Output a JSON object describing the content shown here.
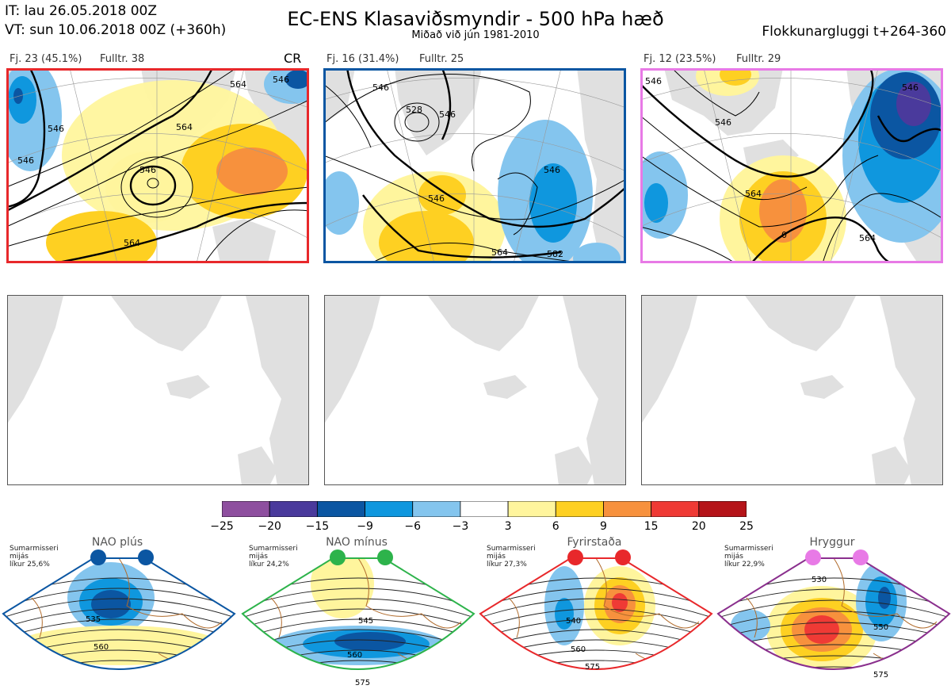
{
  "header": {
    "it": "IT: lau 26.05.2018 00Z",
    "vt": "VT: sun 10.06.2018 00Z  (+360h)",
    "title": "EC-ENS Klasaviðsmyndir - 500 hPa hæð",
    "subtitle": "Miðað við jún 1981-2010",
    "window": "Flokkunargluggi t+264-360"
  },
  "clusters": [
    {
      "label": "Fj. 23 (45.1%)",
      "rep": "Fulltr. 38",
      "tag": "CR",
      "border_color": "#e8282b"
    },
    {
      "label": "Fj. 16 (31.4%)",
      "rep": "Fulltr. 25",
      "tag": "",
      "border_color": "#0b56a2"
    },
    {
      "label": "Fj. 12 (23.5%)",
      "rep": "Fulltr. 29",
      "tag": "",
      "border_color": "#e87ae6"
    }
  ],
  "contour_labels": {
    "c1": [
      "564",
      "546",
      "546",
      "564",
      "546",
      "546",
      "564"
    ],
    "c2": [
      "546",
      "528",
      "546",
      "546",
      "546",
      "564",
      "582"
    ],
    "c3": [
      "546",
      "546",
      "564",
      "0",
      "564",
      "546"
    ]
  },
  "colorbar": {
    "colors": [
      "#8e4f9f",
      "#4a3a9c",
      "#0b56a2",
      "#0f97de",
      "#84c5ee",
      "#ffffff",
      "#fff59d",
      "#fed022",
      "#f7913d",
      "#ef3a35",
      "#b51419"
    ],
    "ticks": [
      "−25",
      "−20",
      "−15",
      "−9",
      "−6",
      "−3",
      "3",
      "6",
      "9",
      "15",
      "20",
      "25"
    ]
  },
  "regimes": [
    {
      "name": "NAO plús",
      "note": [
        "Sumarmisseri",
        "mijás",
        "líkur 25,6%"
      ],
      "dot_color": "#0b56a2",
      "border_color": "#0b56a2",
      "labels": [
        "535",
        "560"
      ]
    },
    {
      "name": "NAO mínus",
      "note": [
        "Sumarmisseri",
        "mijás",
        "líkur 24,2%"
      ],
      "dot_color": "#2db34b",
      "border_color": "#2db34b",
      "labels": [
        "545",
        "560",
        "575"
      ]
    },
    {
      "name": "Fyrirstaða",
      "note": [
        "Sumarmisseri",
        "mijás",
        "líkur 27,3%"
      ],
      "dot_color": "#e8282b",
      "border_color": "#e8282b",
      "labels": [
        "540",
        "560",
        "575"
      ]
    },
    {
      "name": "Hryggur",
      "note": [
        "Sumarmisseri",
        "mijás",
        "líkur 22,9%"
      ],
      "dot_color": "#e87ae6",
      "border_color": "#8a2f8d",
      "labels": [
        "530",
        "550",
        "575"
      ]
    }
  ]
}
